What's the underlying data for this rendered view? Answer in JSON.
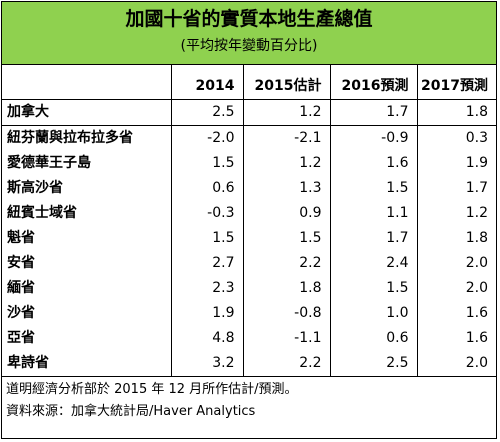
{
  "header": {
    "title": "加國十省的實質本地生產總值",
    "subtitle": "(平均按年變動百分比)"
  },
  "chart_data": {
    "type": "table",
    "columns": [
      "2014",
      "2015估計",
      "2016預測",
      "2017預測"
    ],
    "rows": [
      {
        "name": "加拿大",
        "values": [
          "2.5",
          "1.2",
          "1.7",
          "1.8"
        ]
      },
      {
        "name": "紐芬蘭與拉布拉多省",
        "values": [
          "-2.0",
          "-2.1",
          "-0.9",
          "0.3"
        ]
      },
      {
        "name": "愛德華王子島",
        "values": [
          "1.5",
          "1.2",
          "1.6",
          "1.9"
        ]
      },
      {
        "name": "斯高沙省",
        "values": [
          "0.6",
          "1.3",
          "1.5",
          "1.7"
        ]
      },
      {
        "name": "紐賓士域省",
        "values": [
          "-0.3",
          "0.9",
          "1.1",
          "1.2"
        ]
      },
      {
        "name": "魁省",
        "values": [
          "1.5",
          "1.5",
          "1.7",
          "1.8"
        ]
      },
      {
        "name": "安省",
        "values": [
          "2.7",
          "2.2",
          "2.4",
          "2.0"
        ]
      },
      {
        "name": "緬省",
        "values": [
          "2.3",
          "1.8",
          "1.5",
          "2.0"
        ]
      },
      {
        "name": "沙省",
        "values": [
          "1.9",
          "-0.8",
          "1.0",
          "1.6"
        ]
      },
      {
        "name": "亞省",
        "values": [
          "4.8",
          "-1.1",
          "0.6",
          "1.6"
        ]
      },
      {
        "name": "卑詩省",
        "values": [
          "3.2",
          "2.2",
          "2.5",
          "2.0"
        ]
      }
    ]
  },
  "footer": {
    "note": "道明經濟分析部於 2015 年 12 月所作估計/預測。",
    "source": "資料來源：加拿大統計局/Haver Analytics"
  }
}
